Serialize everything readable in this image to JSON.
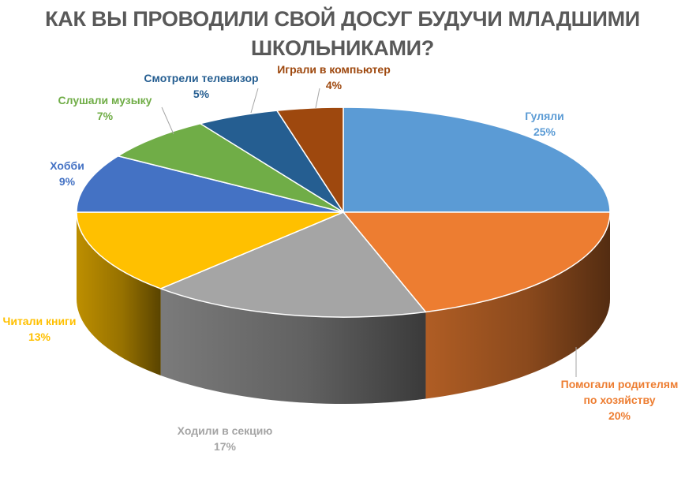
{
  "chart_data": {
    "type": "pie",
    "title_line1": "КАК ВЫ ПРОВОДИЛИ СВОЙ ДОСУГ БУДУЧИ МЛАДШИМИ",
    "title_line2": "ШКОЛЬНИКАМИ?",
    "slices": [
      {
        "label": "Гуляли",
        "value": 25,
        "value_label": "25%",
        "color": "#5B9BD5"
      },
      {
        "label": "Помогали родителям по хозяйству",
        "label_lines": [
          "Помогали родителям",
          "по хозяйству"
        ],
        "value": 20,
        "value_label": "20%",
        "color": "#ED7D31"
      },
      {
        "label": "Ходили в секцию",
        "value": 17,
        "value_label": "17%",
        "color": "#A5A5A5"
      },
      {
        "label": "Читали книги",
        "value": 13,
        "value_label": "13%",
        "color": "#FFC000"
      },
      {
        "label": "Хобби",
        "value": 9,
        "value_label": "9%",
        "color": "#4472C4"
      },
      {
        "label": "Слушали музыку",
        "value": 7,
        "value_label": "7%",
        "color": "#70AD47"
      },
      {
        "label": "Смотрели телевизор",
        "value": 5,
        "value_label": "5%",
        "color": "#255E91"
      },
      {
        "label": "Играли в компьютер",
        "value": 4,
        "value_label": "4%",
        "color": "#9E480E"
      }
    ],
    "label_colors": {
      "Гуляли": "#5B9BD5",
      "Помогали родителям по хозяйству": "#ED7D31",
      "Ходили в секцию": "#A5A5A5",
      "Читали книги": "#FFC000",
      "Хобби": "#4472C4",
      "Слушали музыку": "#70AD47",
      "Смотрели телевизор": "#255E91",
      "Играли в компьютер": "#9E480E"
    }
  }
}
